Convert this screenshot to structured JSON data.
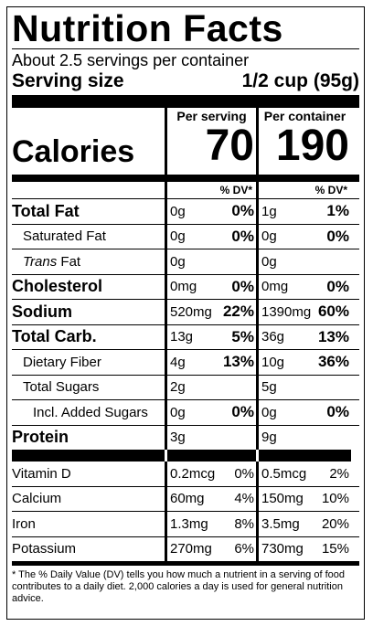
{
  "header": {
    "title": "Nutrition Facts",
    "servings": "About 2.5 servings per container",
    "serving_size_label": "Serving size",
    "serving_size_value": "1/2 cup (95g)"
  },
  "columns": {
    "per_serving": "Per serving",
    "per_container": "Per container",
    "dv_header": "% DV*"
  },
  "calories": {
    "label": "Calories",
    "per_serving": "70",
    "per_container": "190"
  },
  "nutrients": [
    {
      "name": "Total Fat",
      "ps_amt": "0g",
      "ps_dv": "0%",
      "pc_amt": "1g",
      "pc_dv": "1%"
    },
    {
      "name": "Saturated Fat",
      "ps_amt": "0g",
      "ps_dv": "0%",
      "pc_amt": "0g",
      "pc_dv": "0%"
    },
    {
      "name": "Trans",
      "name_suffix": " Fat",
      "ps_amt": "0g",
      "ps_dv": "",
      "pc_amt": "0g",
      "pc_dv": ""
    },
    {
      "name": "Cholesterol",
      "ps_amt": "0mg",
      "ps_dv": "0%",
      "pc_amt": "0mg",
      "pc_dv": "0%"
    },
    {
      "name": "Sodium",
      "ps_amt": "520mg",
      "ps_dv": "22%",
      "pc_amt": "1390mg",
      "pc_dv": "60%"
    },
    {
      "name": "Total Carb.",
      "ps_amt": "13g",
      "ps_dv": "5%",
      "pc_amt": "36g",
      "pc_dv": "13%"
    },
    {
      "name": "Dietary Fiber",
      "ps_amt": "4g",
      "ps_dv": "13%",
      "pc_amt": "10g",
      "pc_dv": "36%"
    },
    {
      "name": "Total Sugars",
      "ps_amt": "2g",
      "ps_dv": "",
      "pc_amt": "5g",
      "pc_dv": ""
    },
    {
      "name": "Incl. Added Sugars",
      "ps_amt": "0g",
      "ps_dv": "0%",
      "pc_amt": "0g",
      "pc_dv": "0%"
    },
    {
      "name": "Protein",
      "ps_amt": "3g",
      "ps_dv": "",
      "pc_amt": "9g",
      "pc_dv": ""
    }
  ],
  "vitamins": [
    {
      "name": "Vitamin D",
      "ps_amt": "0.2mcg",
      "ps_dv": "0%",
      "pc_amt": "0.5mcg",
      "pc_dv": "2%"
    },
    {
      "name": "Calcium",
      "ps_amt": "60mg",
      "ps_dv": "4%",
      "pc_amt": "150mg",
      "pc_dv": "10%"
    },
    {
      "name": "Iron",
      "ps_amt": "1.3mg",
      "ps_dv": "8%",
      "pc_amt": "3.5mg",
      "pc_dv": "20%"
    },
    {
      "name": "Potassium",
      "ps_amt": "270mg",
      "ps_dv": "6%",
      "pc_amt": "730mg",
      "pc_dv": "15%"
    }
  ],
  "footnote": "* The % Daily Value (DV) tells you how much a nutrient in a serving of food contributes to a daily diet. 2,000 calories a day is used for general nutrition advice."
}
